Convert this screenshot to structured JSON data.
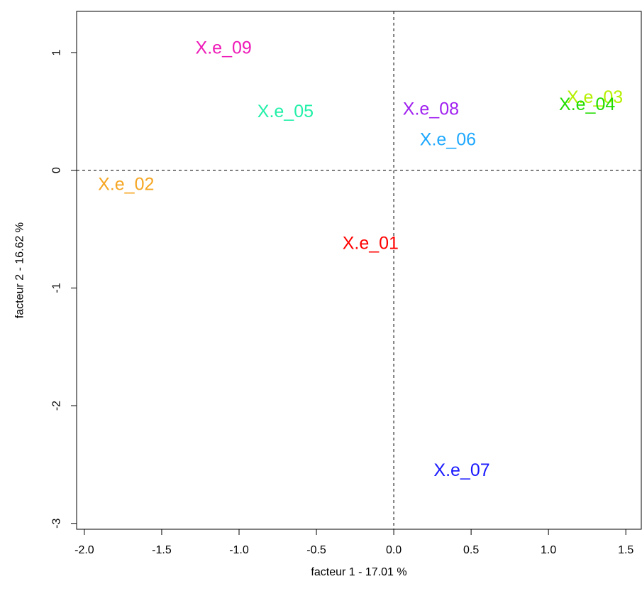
{
  "chart_data": {
    "type": "scatter",
    "xlabel": "facteur  1  - 17.01 %",
    "ylabel": "facteur  2  - 16.62 %",
    "xlim": [
      -2.05,
      1.6
    ],
    "ylim": [
      -3.05,
      1.35
    ],
    "x_ticks": [
      -2.0,
      -1.5,
      -1.0,
      -0.5,
      0.0,
      0.5,
      1.0,
      1.5
    ],
    "x_tick_labels": [
      "-2.0",
      "-1.5",
      "-1.0",
      "-0.5",
      "0.0",
      "0.5",
      "1.0",
      "1.5"
    ],
    "y_ticks": [
      -3,
      -2,
      -1,
      0,
      1
    ],
    "y_tick_labels": [
      "-3",
      "-2",
      "-1",
      "0",
      "1"
    ],
    "reference_lines": {
      "x": 0,
      "y": 0,
      "style": "dashed"
    },
    "points": [
      {
        "label": "X.e_01",
        "x": -0.15,
        "y": -0.62,
        "color": "#ff0000"
      },
      {
        "label": "X.e_02",
        "x": -1.73,
        "y": -0.12,
        "color": "#f5a623"
      },
      {
        "label": "X.e_03",
        "x": 1.3,
        "y": 0.62,
        "color": "#b5f000"
      },
      {
        "label": "X.e_04",
        "x": 1.25,
        "y": 0.56,
        "color": "#22dd00"
      },
      {
        "label": "X.e_05",
        "x": -0.7,
        "y": 0.5,
        "color": "#22f0a8"
      },
      {
        "label": "X.e_06",
        "x": 0.35,
        "y": 0.26,
        "color": "#1ea8ff"
      },
      {
        "label": "X.e_07",
        "x": 0.44,
        "y": -2.55,
        "color": "#1a1aff"
      },
      {
        "label": "X.e_08",
        "x": 0.24,
        "y": 0.52,
        "color": "#a020f0"
      },
      {
        "label": "X.e_09",
        "x": -1.1,
        "y": 1.04,
        "color": "#ee1ab8"
      }
    ]
  }
}
